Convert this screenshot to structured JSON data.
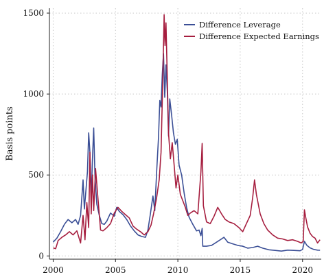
{
  "chart_data": {
    "type": "line",
    "title": "",
    "xlabel": "",
    "ylabel": "Basis points",
    "xlim": [
      1999.7,
      2021.5
    ],
    "ylim": [
      -20,
      1530
    ],
    "xticks": [
      2000,
      2005,
      2010,
      2015,
      2020
    ],
    "yticks": [
      0,
      500,
      1000,
      1500
    ],
    "grid": true,
    "legend_position": "top-right",
    "series": [
      {
        "name": "Difference Leverage",
        "color": "#3b4f96",
        "points": [
          [
            2000.0,
            85
          ],
          [
            2000.3,
            110
          ],
          [
            2000.6,
            150
          ],
          [
            2000.9,
            195
          ],
          [
            2001.2,
            225
          ],
          [
            2001.5,
            205
          ],
          [
            2001.8,
            225
          ],
          [
            2002.0,
            195
          ],
          [
            2002.2,
            250
          ],
          [
            2002.4,
            470
          ],
          [
            2002.5,
            290
          ],
          [
            2002.6,
            380
          ],
          [
            2002.75,
            520
          ],
          [
            2002.85,
            760
          ],
          [
            2002.95,
            640
          ],
          [
            2003.05,
            350
          ],
          [
            2003.15,
            600
          ],
          [
            2003.25,
            790
          ],
          [
            2003.35,
            500
          ],
          [
            2003.5,
            320
          ],
          [
            2003.7,
            250
          ],
          [
            2003.9,
            200
          ],
          [
            2004.1,
            195
          ],
          [
            2004.3,
            215
          ],
          [
            2004.6,
            265
          ],
          [
            2004.9,
            245
          ],
          [
            2005.1,
            300
          ],
          [
            2005.3,
            275
          ],
          [
            2005.6,
            255
          ],
          [
            2005.9,
            225
          ],
          [
            2006.2,
            185
          ],
          [
            2006.5,
            155
          ],
          [
            2006.8,
            130
          ],
          [
            2007.1,
            120
          ],
          [
            2007.4,
            115
          ],
          [
            2007.6,
            160
          ],
          [
            2007.8,
            260
          ],
          [
            2008.0,
            370
          ],
          [
            2008.15,
            280
          ],
          [
            2008.3,
            520
          ],
          [
            2008.45,
            730
          ],
          [
            2008.55,
            960
          ],
          [
            2008.65,
            920
          ],
          [
            2008.75,
            1120
          ],
          [
            2008.85,
            1250
          ],
          [
            2008.95,
            980
          ],
          [
            2009.05,
            1180
          ],
          [
            2009.15,
            1020
          ],
          [
            2009.25,
            740
          ],
          [
            2009.35,
            970
          ],
          [
            2009.5,
            870
          ],
          [
            2009.65,
            760
          ],
          [
            2009.8,
            690
          ],
          [
            2009.95,
            720
          ],
          [
            2010.1,
            560
          ],
          [
            2010.3,
            500
          ],
          [
            2010.5,
            390
          ],
          [
            2010.7,
            300
          ],
          [
            2010.9,
            240
          ],
          [
            2011.2,
            195
          ],
          [
            2011.5,
            155
          ],
          [
            2011.7,
            160
          ],
          [
            2011.85,
            125
          ],
          [
            2011.95,
            170
          ],
          [
            2012.0,
            60
          ],
          [
            2012.3,
            60
          ],
          [
            2012.7,
            65
          ],
          [
            2013.0,
            80
          ],
          [
            2013.4,
            100
          ],
          [
            2013.7,
            115
          ],
          [
            2014.0,
            85
          ],
          [
            2014.4,
            75
          ],
          [
            2014.8,
            65
          ],
          [
            2015.2,
            60
          ],
          [
            2015.6,
            48
          ],
          [
            2016.0,
            52
          ],
          [
            2016.4,
            60
          ],
          [
            2016.8,
            48
          ],
          [
            2017.3,
            38
          ],
          [
            2017.8,
            34
          ],
          [
            2018.3,
            30
          ],
          [
            2018.8,
            36
          ],
          [
            2019.3,
            34
          ],
          [
            2019.8,
            32
          ],
          [
            2020.0,
            40
          ],
          [
            2020.15,
            90
          ],
          [
            2020.35,
            65
          ],
          [
            2020.6,
            50
          ],
          [
            2020.9,
            40
          ],
          [
            2021.2,
            36
          ],
          [
            2021.4,
            35
          ]
        ]
      },
      {
        "name": "Difference Expected Earnings",
        "color": "#a61e3f",
        "points": [
          [
            2000.0,
            50
          ],
          [
            2000.2,
            45
          ],
          [
            2000.4,
            95
          ],
          [
            2000.7,
            115
          ],
          [
            2001.0,
            130
          ],
          [
            2001.3,
            150
          ],
          [
            2001.6,
            130
          ],
          [
            2001.9,
            155
          ],
          [
            2002.2,
            80
          ],
          [
            2002.4,
            250
          ],
          [
            2002.55,
            100
          ],
          [
            2002.7,
            330
          ],
          [
            2002.85,
            175
          ],
          [
            2002.95,
            640
          ],
          [
            2003.05,
            260
          ],
          [
            2003.15,
            500
          ],
          [
            2003.25,
            280
          ],
          [
            2003.4,
            540
          ],
          [
            2003.6,
            350
          ],
          [
            2003.8,
            160
          ],
          [
            2004.0,
            155
          ],
          [
            2004.3,
            175
          ],
          [
            2004.6,
            200
          ],
          [
            2004.9,
            265
          ],
          [
            2005.2,
            300
          ],
          [
            2005.5,
            275
          ],
          [
            2005.8,
            255
          ],
          [
            2006.1,
            235
          ],
          [
            2006.4,
            185
          ],
          [
            2006.7,
            165
          ],
          [
            2007.0,
            150
          ],
          [
            2007.3,
            130
          ],
          [
            2007.6,
            150
          ],
          [
            2007.85,
            190
          ],
          [
            2008.05,
            260
          ],
          [
            2008.3,
            360
          ],
          [
            2008.5,
            470
          ],
          [
            2008.65,
            640
          ],
          [
            2008.8,
            1120
          ],
          [
            2008.9,
            1490
          ],
          [
            2008.97,
            1300
          ],
          [
            2009.05,
            1440
          ],
          [
            2009.15,
            1100
          ],
          [
            2009.25,
            760
          ],
          [
            2009.4,
            600
          ],
          [
            2009.55,
            700
          ],
          [
            2009.7,
            560
          ],
          [
            2009.85,
            420
          ],
          [
            2010.0,
            500
          ],
          [
            2010.2,
            380
          ],
          [
            2010.4,
            340
          ],
          [
            2010.6,
            300
          ],
          [
            2010.8,
            250
          ],
          [
            2011.0,
            265
          ],
          [
            2011.3,
            280
          ],
          [
            2011.6,
            260
          ],
          [
            2011.85,
            520
          ],
          [
            2011.95,
            695
          ],
          [
            2012.05,
            310
          ],
          [
            2012.3,
            210
          ],
          [
            2012.6,
            200
          ],
          [
            2012.9,
            245
          ],
          [
            2013.2,
            300
          ],
          [
            2013.5,
            260
          ],
          [
            2013.8,
            225
          ],
          [
            2014.1,
            210
          ],
          [
            2014.5,
            200
          ],
          [
            2014.9,
            175
          ],
          [
            2015.2,
            150
          ],
          [
            2015.5,
            200
          ],
          [
            2015.8,
            250
          ],
          [
            2016.0,
            360
          ],
          [
            2016.15,
            470
          ],
          [
            2016.3,
            380
          ],
          [
            2016.6,
            260
          ],
          [
            2016.9,
            200
          ],
          [
            2017.2,
            160
          ],
          [
            2017.6,
            130
          ],
          [
            2018.0,
            110
          ],
          [
            2018.4,
            105
          ],
          [
            2018.8,
            95
          ],
          [
            2019.2,
            100
          ],
          [
            2019.6,
            90
          ],
          [
            2019.9,
            80
          ],
          [
            2020.05,
            90
          ],
          [
            2020.15,
            285
          ],
          [
            2020.25,
            240
          ],
          [
            2020.4,
            180
          ],
          [
            2020.6,
            140
          ],
          [
            2020.8,
            120
          ],
          [
            2021.0,
            110
          ],
          [
            2021.2,
            80
          ],
          [
            2021.4,
            100
          ]
        ]
      }
    ]
  }
}
